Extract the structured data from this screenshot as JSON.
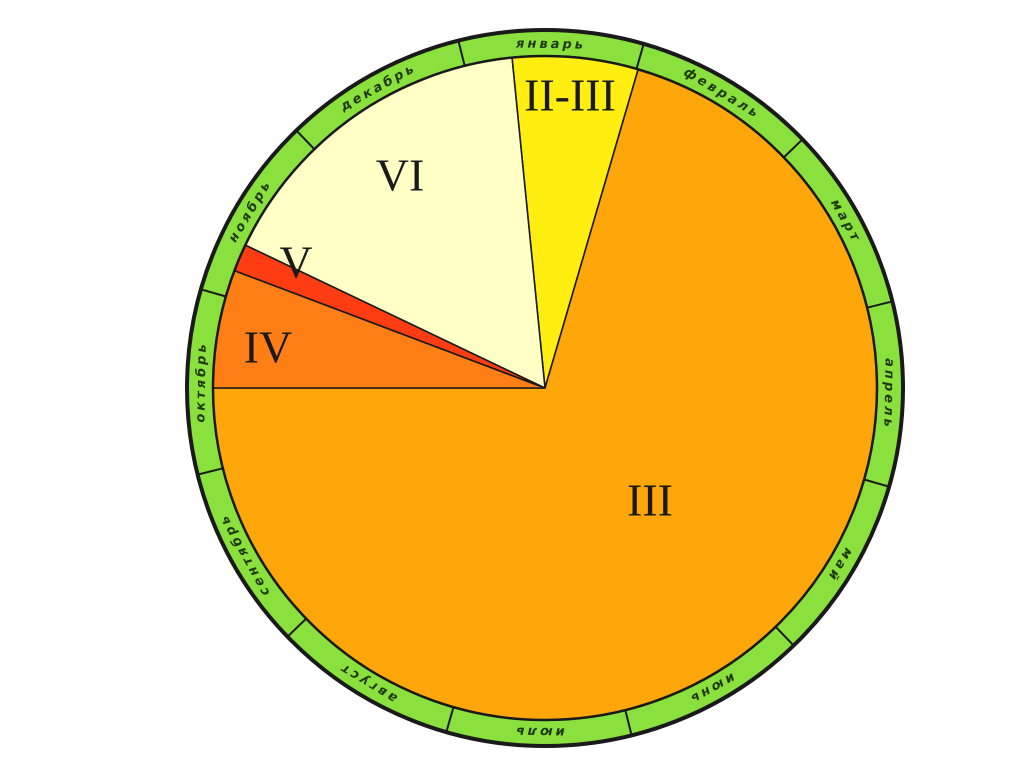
{
  "diagram": {
    "colors": {
      "ring": "#8ae03c",
      "outline": "#1a1a1a"
    },
    "months": [
      "январь",
      "февраль",
      "март",
      "апрель",
      "май",
      "июнь",
      "июль",
      "август",
      "сентябрь",
      "октябрь",
      "ноябрь",
      "декабрь"
    ],
    "sectors": [
      {
        "label": "II-III",
        "color": "#ffee10",
        "start_deg": 354.3,
        "end_deg": 376.3
      },
      {
        "label": "III",
        "color": "#ffa70a",
        "start_deg": 16.3,
        "end_deg": 270
      },
      {
        "label": "IV",
        "color": "#ff7e16",
        "start_deg": 270,
        "end_deg": 290.7
      },
      {
        "label": "V",
        "color": "#ff3c12",
        "start_deg": 290.7,
        "end_deg": 295.5
      },
      {
        "label": "VI",
        "color": "#ffffc6",
        "start_deg": 295.5,
        "end_deg": 354.3
      }
    ]
  }
}
